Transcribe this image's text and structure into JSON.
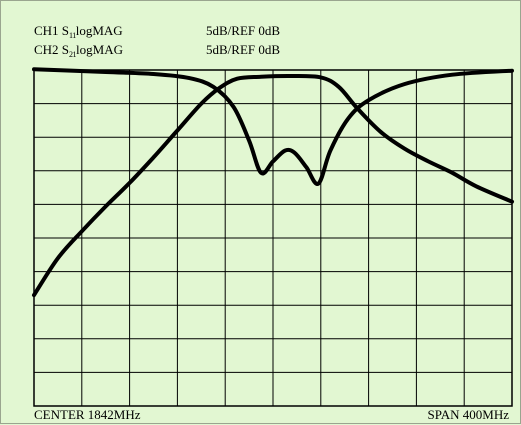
{
  "chart_data": {
    "type": "line",
    "title": "",
    "channels": [
      {
        "label": "CH1 S",
        "sub": "11",
        "suffix": "logMAG",
        "scale": "5dB/REF 0dB"
      },
      {
        "label": "CH2 S",
        "sub": "21",
        "suffix": "logMAG",
        "scale": "5dB/REF 0dB"
      }
    ],
    "center_label": "CENTER 1842MHz",
    "span_label": "SPAN 400MHz",
    "center_mhz": 1842,
    "span_mhz": 400,
    "x_range_mhz": [
      1642,
      2042
    ],
    "y_range_db": [
      -50,
      0
    ],
    "grid": {
      "on": true,
      "divisions_x": 10,
      "divisions_y": 10
    },
    "colors": {
      "background": "#e2f7d2",
      "trace": "#000000",
      "grid": "#000000"
    },
    "series": [
      {
        "name": "S11",
        "x": [
          1642,
          1702,
          1742,
          1772,
          1792,
          1809,
          1822,
          1832,
          1842,
          1852,
          1860,
          1870,
          1880,
          1890,
          1905,
          1922,
          1952,
          1992,
          2042
        ],
        "y": [
          0.1,
          -0.3,
          -0.6,
          -1.2,
          -2.5,
          -5.5,
          -10.5,
          -15.3,
          -13.6,
          -12.0,
          -12.3,
          -14.5,
          -16.9,
          -12.0,
          -7.2,
          -4.5,
          -2.1,
          -0.7,
          -0.1
        ]
      },
      {
        "name": "S21",
        "x": [
          1642,
          1662,
          1682,
          1702,
          1722,
          1742,
          1762,
          1782,
          1797,
          1812,
          1832,
          1857,
          1882,
          1897,
          1912,
          1932,
          1952,
          1972,
          1992,
          2012,
          2042
        ],
        "y": [
          -33.5,
          -28.0,
          -24.0,
          -20.3,
          -16.8,
          -13.0,
          -9.0,
          -5.0,
          -2.7,
          -1.3,
          -1.0,
          -0.9,
          -1.1,
          -2.5,
          -5.6,
          -9.2,
          -11.7,
          -13.6,
          -15.3,
          -17.3,
          -19.6
        ]
      }
    ]
  }
}
